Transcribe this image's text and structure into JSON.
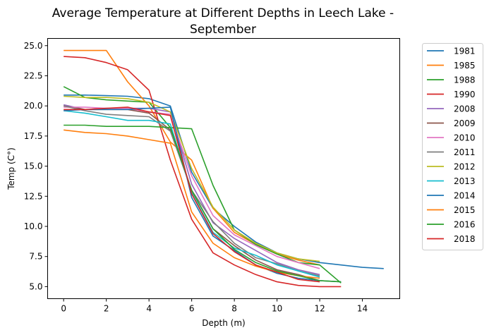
{
  "chart_data": {
    "type": "line",
    "title_line1": "Average Temperature at Different Depths in Leech Lake -",
    "title_line2": "September",
    "xlabel": "Depth (m)",
    "ylabel": "Temp (C°)",
    "xlim": [
      -0.75,
      15.75
    ],
    "ylim": [
      4.0,
      25.6
    ],
    "xticks": [
      0,
      2,
      4,
      6,
      8,
      10,
      12,
      14
    ],
    "yticks": [
      5.0,
      7.5,
      10.0,
      12.5,
      15.0,
      17.5,
      20.0,
      22.5,
      25.0
    ],
    "legend_position": "outside-right",
    "series": [
      {
        "name": "1981",
        "color": "#1f77b4",
        "x": [
          0,
          1,
          2,
          3,
          4,
          5,
          6,
          7,
          8,
          9,
          10,
          11,
          12,
          13,
          14,
          15
        ],
        "y": [
          20.9,
          20.9,
          20.85,
          20.8,
          20.6,
          20.0,
          14.5,
          11.5,
          10.0,
          8.7,
          7.8,
          7.3,
          7.0,
          6.8,
          6.6,
          6.5
        ]
      },
      {
        "name": "1985",
        "color": "#ff7f0e",
        "x": [
          0,
          1,
          2,
          3,
          4,
          5,
          6,
          7,
          8,
          9,
          10,
          11,
          12
        ],
        "y": [
          24.6,
          24.6,
          24.6,
          22.0,
          20.0,
          17.0,
          15.5,
          11.5,
          9.5,
          8.5,
          7.7,
          7.2,
          6.8
        ]
      },
      {
        "name": "1988",
        "color": "#2ca02c",
        "x": [
          0,
          1,
          2,
          3,
          4,
          5,
          6,
          7,
          8,
          9,
          10,
          11,
          12,
          13
        ],
        "y": [
          21.6,
          20.7,
          20.5,
          20.4,
          20.3,
          18.2,
          18.1,
          13.4,
          9.7,
          8.5,
          7.7,
          7.0,
          6.8,
          5.3
        ]
      },
      {
        "name": "1990",
        "color": "#d62728",
        "x": [
          0,
          1,
          2,
          3,
          4,
          5,
          6,
          7,
          8,
          9,
          10,
          11,
          12,
          13
        ],
        "y": [
          24.1,
          24.0,
          23.6,
          23.0,
          21.3,
          15.5,
          10.6,
          7.8,
          6.8,
          6.0,
          5.4,
          5.1,
          5.0,
          5.0
        ]
      },
      {
        "name": "2008",
        "color": "#9467bd",
        "x": [
          0,
          1,
          2,
          3,
          4,
          5,
          6,
          7,
          8,
          9,
          10,
          11,
          12
        ],
        "y": [
          20.1,
          19.7,
          19.8,
          19.8,
          19.8,
          19.5,
          13.5,
          10.3,
          9.0,
          8.0,
          7.0,
          6.4,
          6.0
        ]
      },
      {
        "name": "2009",
        "color": "#8c564b",
        "x": [
          0,
          1,
          2,
          3,
          4,
          5,
          6,
          7,
          8,
          9,
          10,
          11,
          12
        ],
        "y": [
          20.0,
          19.7,
          19.7,
          19.7,
          19.4,
          18.0,
          13.0,
          9.8,
          8.4,
          7.2,
          6.4,
          6.0,
          5.5
        ]
      },
      {
        "name": "2010",
        "color": "#e377c2",
        "x": [
          0,
          1,
          2,
          3,
          4,
          5,
          6,
          7,
          8,
          9,
          10,
          11,
          12
        ],
        "y": [
          19.9,
          19.9,
          19.8,
          19.8,
          19.5,
          19.3,
          14.2,
          10.9,
          9.3,
          8.4,
          7.5,
          7.0,
          6.5
        ]
      },
      {
        "name": "2011",
        "color": "#7f7f7f",
        "x": [
          0,
          1,
          2,
          3,
          4,
          5,
          6,
          7,
          8,
          9,
          10,
          11,
          12
        ],
        "y": [
          20.0,
          19.6,
          19.3,
          19.2,
          19.1,
          17.9,
          13.0,
          10.4,
          8.6,
          7.4,
          6.9,
          6.3,
          5.9
        ]
      },
      {
        "name": "2012",
        "color": "#bcbd22",
        "x": [
          0,
          1,
          2,
          3,
          4,
          5,
          6,
          7,
          8,
          9,
          10,
          11,
          12
        ],
        "y": [
          20.8,
          20.7,
          20.7,
          20.6,
          20.3,
          19.5,
          14.8,
          11.6,
          9.7,
          8.6,
          7.8,
          7.3,
          7.1
        ]
      },
      {
        "name": "2013",
        "color": "#17becf",
        "x": [
          0,
          1,
          2,
          3,
          4,
          5,
          6,
          7,
          8,
          9,
          10,
          11,
          12
        ],
        "y": [
          19.6,
          19.4,
          19.1,
          18.8,
          18.8,
          18.5,
          12.8,
          9.5,
          8.2,
          7.6,
          6.8,
          6.3,
          5.8
        ]
      },
      {
        "name": "2014",
        "color": "#1f77b4",
        "x": [
          0,
          1,
          2,
          3,
          4,
          5,
          6,
          7,
          8,
          9,
          10,
          11,
          12,
          13
        ],
        "y": [
          19.6,
          19.7,
          19.7,
          19.7,
          19.8,
          19.9,
          12.4,
          9.2,
          8.0,
          6.8,
          6.1,
          5.7,
          5.5,
          5.4
        ]
      },
      {
        "name": "2015",
        "color": "#ff7f0e",
        "x": [
          0,
          1,
          2,
          3,
          4,
          5,
          6,
          7,
          8,
          9,
          10,
          11,
          12
        ],
        "y": [
          18.0,
          17.8,
          17.7,
          17.5,
          17.2,
          16.9,
          11.2,
          8.6,
          7.4,
          6.7,
          6.2,
          5.9,
          5.7
        ]
      },
      {
        "name": "2016",
        "color": "#2ca02c",
        "x": [
          0,
          1,
          2,
          3,
          4,
          5,
          6,
          7,
          8,
          9,
          10,
          11,
          12,
          13
        ],
        "y": [
          18.4,
          18.4,
          18.3,
          18.3,
          18.3,
          18.2,
          13.0,
          9.8,
          8.1,
          7.0,
          6.3,
          5.9,
          5.5,
          5.4
        ]
      },
      {
        "name": "2018",
        "color": "#d62728",
        "x": [
          0,
          1,
          2,
          3,
          4,
          5,
          6,
          7,
          8,
          9,
          10,
          11,
          12
        ],
        "y": [
          19.7,
          19.7,
          19.8,
          19.9,
          19.5,
          19.2,
          12.7,
          9.4,
          7.9,
          6.8,
          6.2,
          5.6,
          5.4
        ]
      }
    ]
  }
}
